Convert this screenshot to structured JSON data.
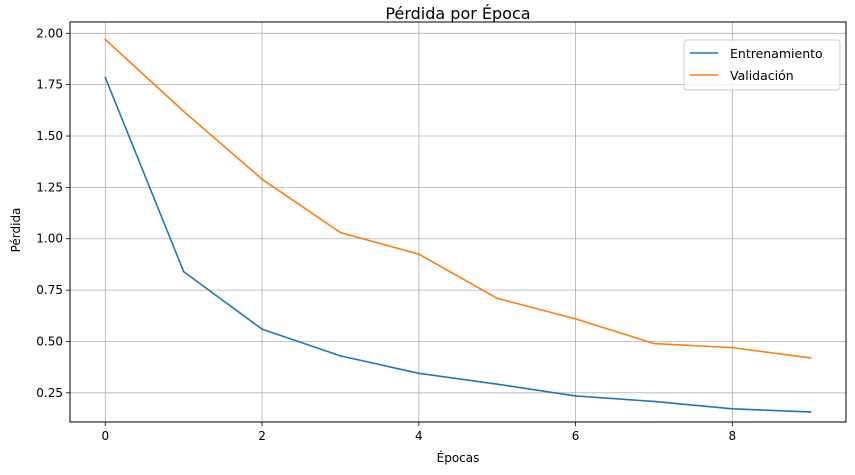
{
  "chart_data": {
    "type": "line",
    "title": "Pérdida por Época",
    "xlabel": "Épocas",
    "ylabel": "Pérdida",
    "x": [
      0,
      1,
      2,
      3,
      4,
      5,
      6,
      7,
      8,
      9
    ],
    "xlim": [
      -0.45,
      9.45
    ],
    "ylim": [
      0.108,
      2.055
    ],
    "xticks": [
      0,
      2,
      4,
      6,
      8
    ],
    "yticks": [
      0.25,
      0.5,
      0.75,
      1.0,
      1.25,
      1.5,
      1.75,
      2.0
    ],
    "xtick_labels": [
      "0",
      "2",
      "4",
      "6",
      "8"
    ],
    "ytick_labels": [
      "0.25",
      "0.50",
      "0.75",
      "1.00",
      "1.25",
      "1.50",
      "1.75",
      "2.00"
    ],
    "grid": true,
    "legend_position": "top-right",
    "series": [
      {
        "name": "Entrenamiento",
        "color": "#1f77b4",
        "values": [
          1.785,
          0.84,
          0.56,
          0.43,
          0.345,
          0.292,
          0.235,
          0.208,
          0.172,
          0.157
        ]
      },
      {
        "name": "Validación",
        "color": "#ff7f0e",
        "values": [
          1.97,
          1.62,
          1.29,
          1.03,
          0.925,
          0.71,
          0.61,
          0.49,
          0.47,
          0.42
        ]
      }
    ]
  }
}
